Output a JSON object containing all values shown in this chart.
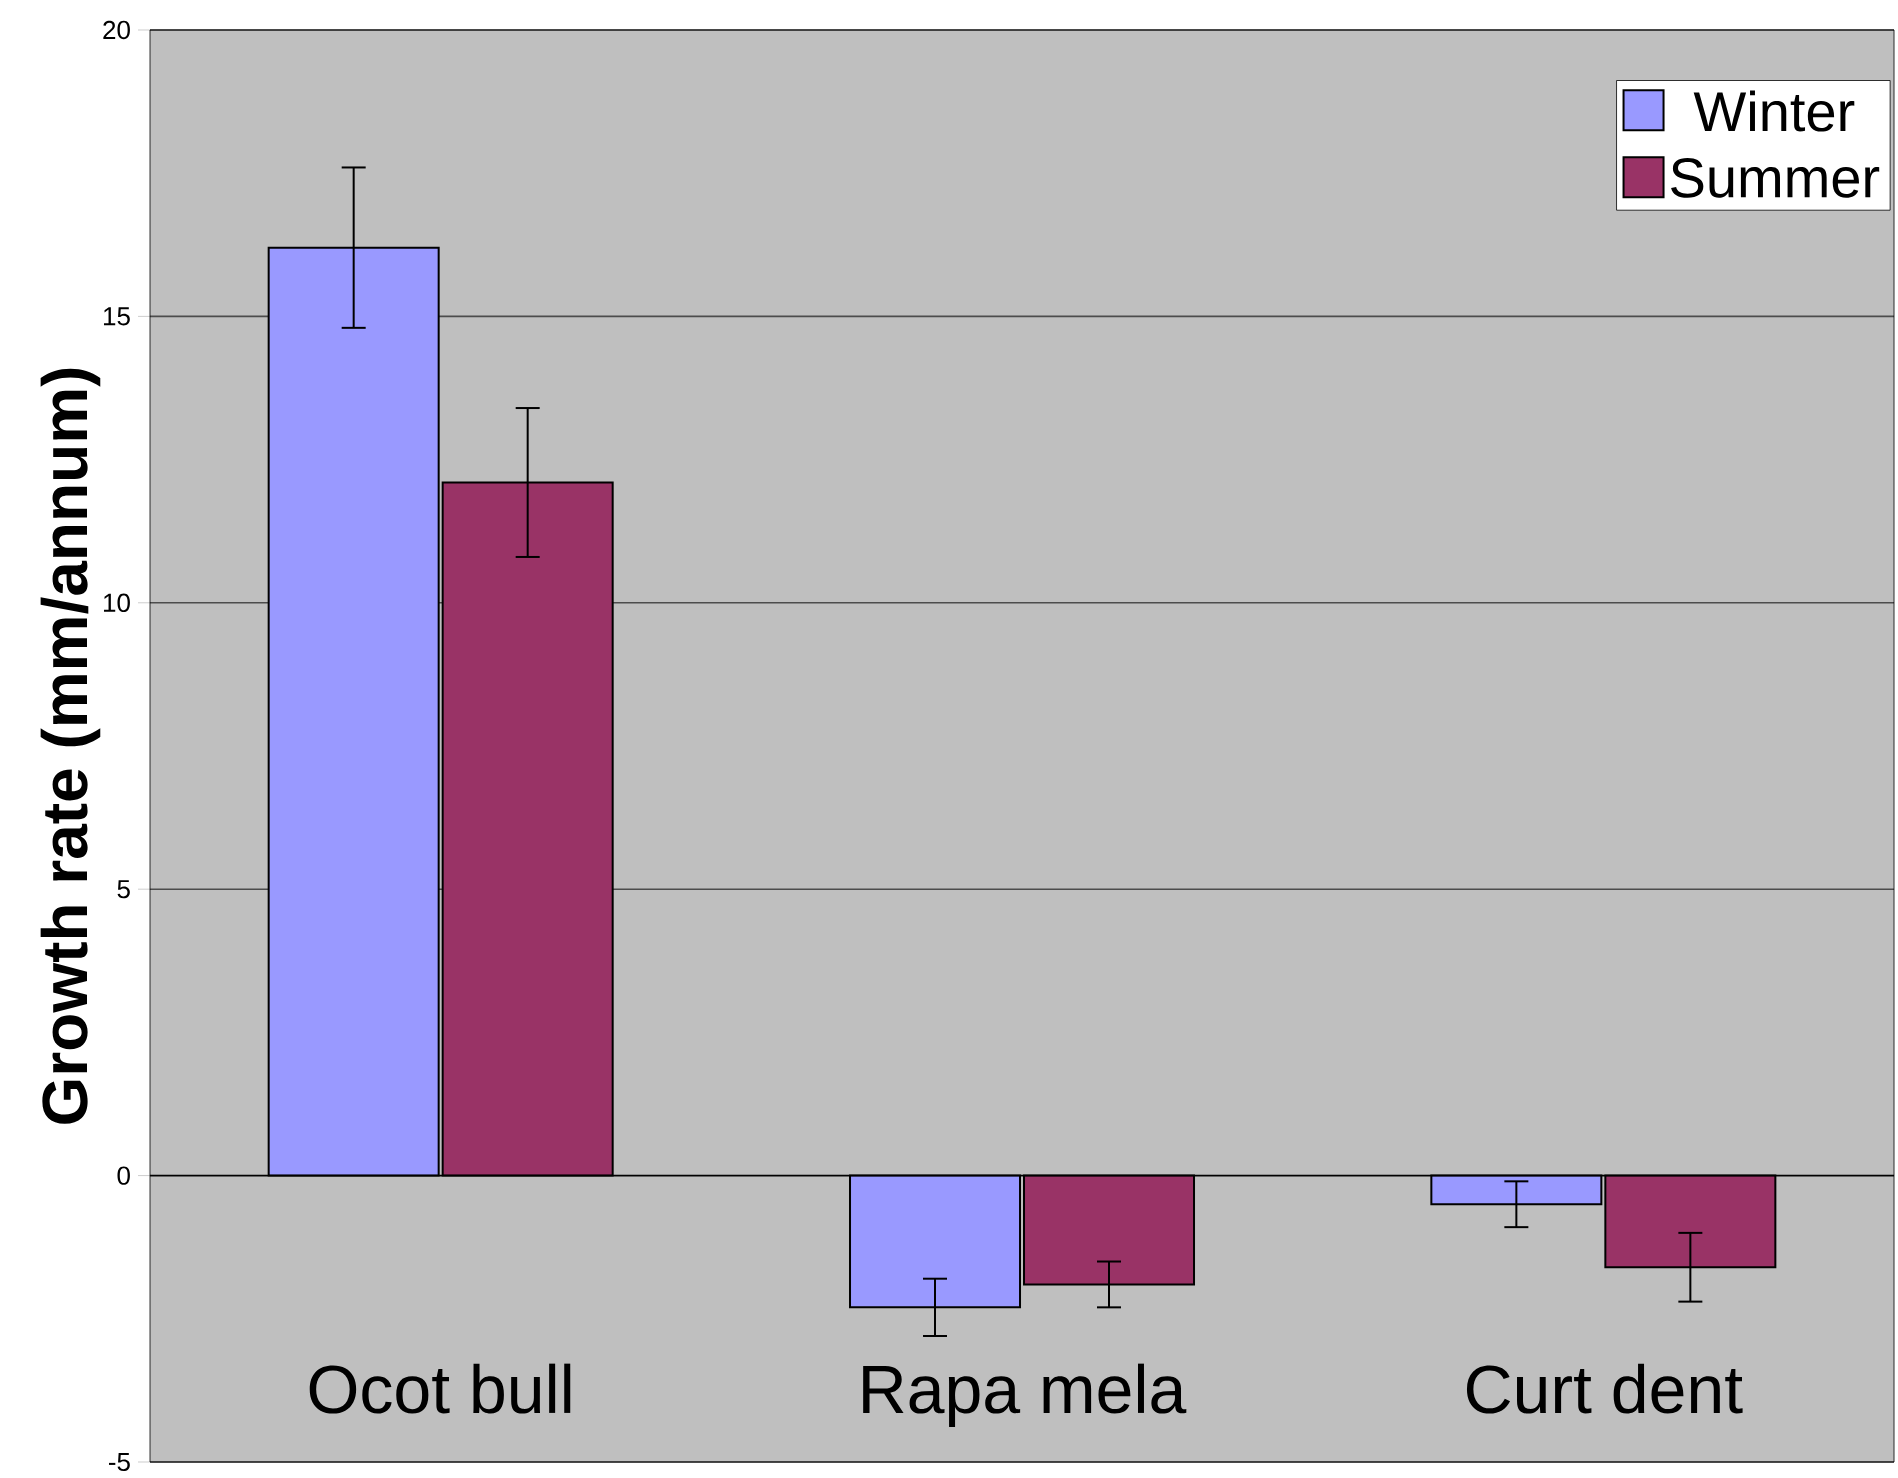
{
  "chart_data": {
    "type": "bar",
    "ylabel": "Growth rate (mm/annum)",
    "categories": [
      "Ocot bull",
      "Rapa mela",
      "Curt dent"
    ],
    "series": [
      {
        "name": "Winter",
        "color": "#9999ff",
        "values": [
          16.2,
          -2.3,
          -0.5
        ],
        "errors": [
          1.4,
          0.5,
          0.4
        ]
      },
      {
        "name": "Summer",
        "color": "#993366",
        "values": [
          12.1,
          -1.9,
          -1.6
        ],
        "errors": [
          1.3,
          0.4,
          0.6
        ]
      }
    ],
    "ylim": [
      -5,
      20
    ],
    "yticks": [
      -5,
      0,
      5,
      10,
      15,
      20
    ],
    "grid": "y",
    "legend": "top right"
  }
}
